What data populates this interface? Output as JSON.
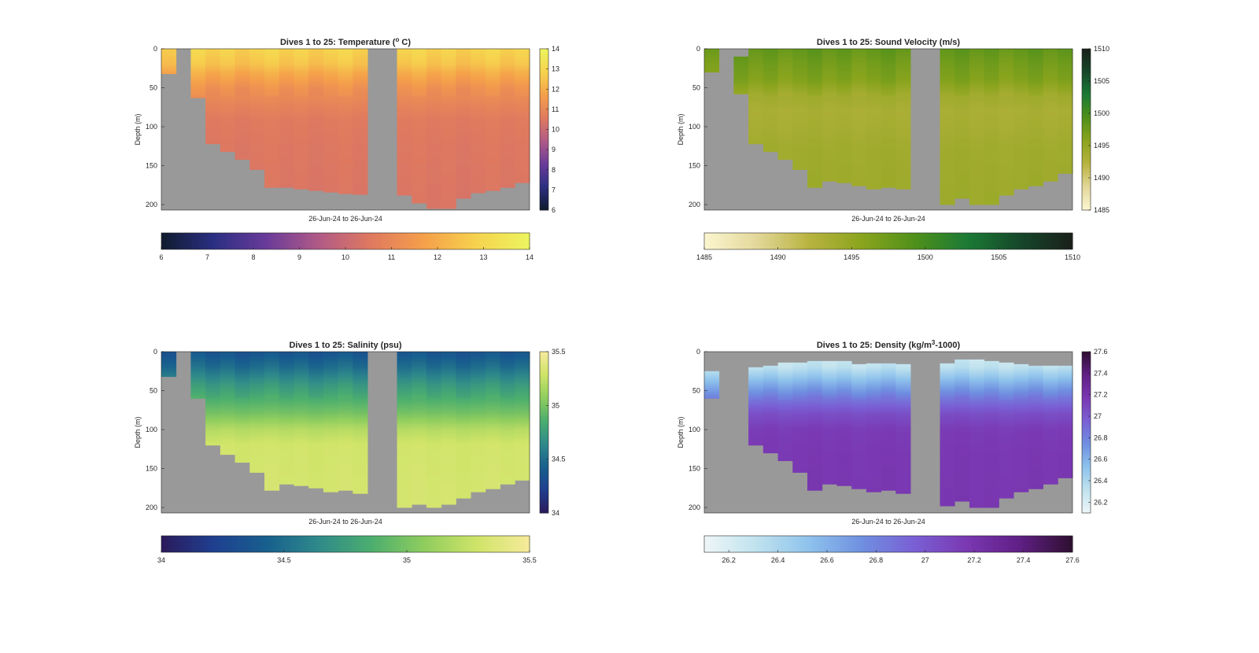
{
  "chart_data": [
    {
      "type": "heatmap",
      "id": "temp",
      "title": "Dives 1 to 25: Temperature (° C)",
      "title_main": "Dives 1 to 25: Temperature (",
      "title_sup": "o",
      "title_end": " C)",
      "ylabel": "Depth (m)",
      "xlabel": "26-Jun-24 to 26-Jun-24",
      "ylim": [
        0,
        207
      ],
      "y_reversed": true,
      "yticks": [
        0,
        50,
        100,
        150,
        200
      ],
      "clim": [
        6,
        14
      ],
      "colorbar_ticks": [
        6,
        7,
        8,
        9,
        10,
        11,
        12,
        13,
        14
      ],
      "colormap": [
        "#0f1b2d",
        "#2b2f83",
        "#6a3b9a",
        "#b15a86",
        "#e07a5f",
        "#f5a04a",
        "#f6d34e",
        "#ecf55f"
      ],
      "nodata_color": "#999999",
      "dives": [
        1,
        2,
        3,
        4,
        5,
        6,
        7,
        8,
        9,
        10,
        11,
        12,
        13,
        14,
        15,
        16,
        17,
        18,
        19,
        20,
        21,
        22,
        23,
        24,
        25
      ],
      "dive_max_depth": [
        32,
        0,
        63,
        122,
        132,
        142,
        155,
        178,
        178,
        180,
        182,
        184,
        186,
        187,
        0,
        0,
        188,
        198,
        205,
        205,
        192,
        185,
        182,
        178,
        172
      ],
      "dive_top_gap": [
        0,
        0,
        0,
        0,
        0,
        0,
        0,
        0,
        0,
        0,
        0,
        0,
        0,
        0,
        0,
        0,
        0,
        0,
        0,
        0,
        0,
        0,
        0,
        0,
        0
      ],
      "profile": [
        [
          0,
          12.9
        ],
        [
          20,
          12.5
        ],
        [
          30,
          12.0
        ],
        [
          50,
          11.3
        ],
        [
          70,
          10.9
        ],
        [
          90,
          10.6
        ],
        [
          120,
          10.5
        ],
        [
          210,
          10.4
        ]
      ]
    },
    {
      "type": "heatmap",
      "id": "sv",
      "title": "Dives 1 to 25: Sound Velocity (m/s)",
      "title_main": "Dives 1 to 25: Sound Velocity (m/s)",
      "title_sup": "",
      "title_end": "",
      "ylabel": "Depth (m)",
      "xlabel": "26-Jun-24 to 26-Jun-24",
      "ylim": [
        0,
        207
      ],
      "y_reversed": true,
      "yticks": [
        0,
        50,
        100,
        150,
        200
      ],
      "clim": [
        1485,
        1510
      ],
      "colorbar_ticks": [
        1485,
        1490,
        1495,
        1500,
        1505,
        1510
      ],
      "colormap": [
        "#fbf6d0",
        "#e3d79a",
        "#b8b33f",
        "#8aa41d",
        "#4f901a",
        "#1b7a35",
        "#16472a",
        "#1a1f1a"
      ],
      "nodata_color": "#999999",
      "dives": [
        1,
        2,
        3,
        4,
        5,
        6,
        7,
        8,
        9,
        10,
        11,
        12,
        13,
        14,
        15,
        16,
        17,
        18,
        19,
        20,
        21,
        22,
        23,
        24,
        25
      ],
      "dive_max_depth": [
        30,
        0,
        58,
        122,
        132,
        142,
        155,
        178,
        170,
        172,
        176,
        180,
        178,
        180,
        0,
        0,
        200,
        192,
        200,
        200,
        188,
        180,
        176,
        170,
        160
      ],
      "dive_top_gap": [
        0,
        0,
        10,
        0,
        0,
        0,
        0,
        0,
        0,
        0,
        0,
        0,
        0,
        0,
        0,
        0,
        0,
        0,
        0,
        0,
        0,
        0,
        0,
        0,
        0
      ],
      "profile": [
        [
          0,
          1498.2
        ],
        [
          20,
          1497.0
        ],
        [
          40,
          1496.2
        ],
        [
          60,
          1494.0
        ],
        [
          80,
          1493.3
        ],
        [
          100,
          1493.5
        ],
        [
          130,
          1494.0
        ],
        [
          210,
          1494.3
        ]
      ]
    },
    {
      "type": "heatmap",
      "id": "sal",
      "title": "Dives 1 to 25: Salinity (psu)",
      "title_main": "Dives 1 to 25: Salinity (psu)",
      "title_sup": "",
      "title_end": "",
      "ylabel": "Depth (m)",
      "xlabel": "26-Jun-24 to 26-Jun-24",
      "ylim": [
        0,
        207
      ],
      "y_reversed": true,
      "yticks": [
        0,
        50,
        100,
        150,
        200
      ],
      "clim": [
        34,
        35.5
      ],
      "colorbar_ticks": [
        34,
        34.5,
        35,
        35.5
      ],
      "colormap": [
        "#2b1a5c",
        "#1f3f8f",
        "#185f8e",
        "#2f8a8a",
        "#4cae6e",
        "#8fcd5e",
        "#cfe468",
        "#f6ea9c"
      ],
      "nodata_color": "#999999",
      "dives": [
        1,
        2,
        3,
        4,
        5,
        6,
        7,
        8,
        9,
        10,
        11,
        12,
        13,
        14,
        15,
        16,
        17,
        18,
        19,
        20,
        21,
        22,
        23,
        24,
        25
      ],
      "dive_max_depth": [
        32,
        0,
        60,
        120,
        132,
        142,
        155,
        178,
        170,
        172,
        175,
        180,
        178,
        182,
        0,
        0,
        200,
        196,
        200,
        196,
        188,
        180,
        176,
        170,
        165
      ],
      "dive_top_gap": [
        0,
        0,
        0,
        0,
        0,
        0,
        0,
        0,
        0,
        0,
        0,
        0,
        0,
        0,
        0,
        0,
        0,
        0,
        0,
        0,
        0,
        0,
        0,
        0,
        0
      ],
      "profile": [
        [
          0,
          34.35
        ],
        [
          20,
          34.5
        ],
        [
          40,
          34.7
        ],
        [
          60,
          34.85
        ],
        [
          80,
          35.0
        ],
        [
          100,
          35.2
        ],
        [
          120,
          35.3
        ],
        [
          210,
          35.32
        ]
      ]
    },
    {
      "type": "heatmap",
      "id": "dens",
      "title": "Dives 1 to 25: Density (kg/m3-1000)",
      "title_main": "Dives 1 to 25: Density (kg/m",
      "title_sup": "3",
      "title_end": "-1000)",
      "ylabel": "Depth (m)",
      "xlabel": "26-Jun-24 to 26-Jun-24",
      "ylim": [
        0,
        207
      ],
      "y_reversed": true,
      "yticks": [
        0,
        50,
        100,
        150,
        200
      ],
      "clim": [
        26.1,
        27.6
      ],
      "colorbar_ticks": [
        26.2,
        26.4,
        26.6,
        26.8,
        27,
        27.2,
        27.4,
        27.6
      ],
      "colorbar_tick_labels": [
        "26.2",
        "26.4",
        "26.6",
        "26.8",
        "27",
        "27.2",
        "27.4",
        "27.6"
      ],
      "colormap": [
        "#eef6f8",
        "#bfe2ee",
        "#8ec2ec",
        "#6f8fe0",
        "#7a5fd4",
        "#7a38b2",
        "#5f1f84",
        "#2e0f30"
      ],
      "nodata_color": "#999999",
      "dives": [
        1,
        2,
        3,
        4,
        5,
        6,
        7,
        8,
        9,
        10,
        11,
        12,
        13,
        14,
        15,
        16,
        17,
        18,
        19,
        20,
        21,
        22,
        23,
        24,
        25
      ],
      "dive_max_depth": [
        60,
        0,
        0,
        120,
        130,
        140,
        155,
        178,
        170,
        172,
        176,
        180,
        178,
        182,
        0,
        0,
        198,
        192,
        200,
        200,
        188,
        180,
        176,
        170,
        162
      ],
      "dive_top_gap": [
        25,
        0,
        0,
        20,
        18,
        14,
        14,
        12,
        12,
        12,
        16,
        15,
        15,
        16,
        0,
        0,
        15,
        10,
        10,
        12,
        14,
        16,
        18,
        18,
        18
      ],
      "profile": [
        [
          0,
          26.22
        ],
        [
          20,
          26.32
        ],
        [
          40,
          26.6
        ],
        [
          60,
          26.85
        ],
        [
          80,
          27.05
        ],
        [
          100,
          27.15
        ],
        [
          130,
          27.17
        ],
        [
          210,
          27.18
        ]
      ]
    }
  ]
}
